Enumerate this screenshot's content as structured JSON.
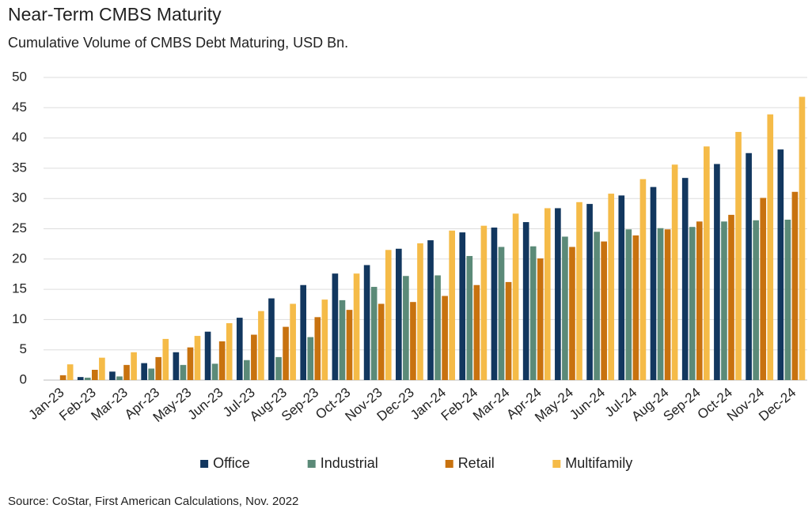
{
  "chart_data": {
    "type": "bar",
    "title": "Near-Term CMBS Maturity",
    "subtitle": "Cumulative Volume of CMBS Debt Maturing, USD Bn.",
    "source": "Source: CoStar, First American Calculations, Nov. 2022",
    "categories": [
      "Jan-23",
      "Feb-23",
      "Mar-23",
      "Apr-23",
      "May-23",
      "Jun-23",
      "Jul-23",
      "Aug-23",
      "Sep-23",
      "Oct-23",
      "Nov-23",
      "Dec-23",
      "Jan-24",
      "Feb-24",
      "Mar-24",
      "Apr-24",
      "May-24",
      "Jun-24",
      "Jul-24",
      "Aug-24",
      "Sep-24",
      "Oct-24",
      "Nov-24",
      "Dec-24"
    ],
    "series": [
      {
        "name": "Office",
        "color": "#12375f",
        "values": [
          0,
          0.5,
          1.4,
          2.8,
          4.6,
          8.0,
          10.3,
          13.5,
          15.7,
          17.6,
          19.0,
          21.7,
          23.1,
          24.4,
          25.2,
          26.1,
          28.4,
          29.1,
          30.5,
          31.9,
          33.4,
          35.7,
          37.5,
          38.1
        ]
      },
      {
        "name": "Industrial",
        "color": "#5b8a78",
        "values": [
          0,
          0.4,
          0.6,
          1.9,
          2.5,
          2.7,
          3.3,
          3.8,
          7.1,
          13.2,
          15.4,
          17.2,
          17.3,
          20.5,
          22.0,
          22.1,
          23.7,
          24.5,
          24.9,
          25.1,
          25.3,
          26.2,
          26.4,
          26.5
        ]
      },
      {
        "name": "Retail",
        "color": "#c8720f",
        "values": [
          0.8,
          1.7,
          2.5,
          3.8,
          5.4,
          6.4,
          7.5,
          8.8,
          10.4,
          11.6,
          12.6,
          12.9,
          13.9,
          15.7,
          16.2,
          20.1,
          22.0,
          22.9,
          23.9,
          24.9,
          26.2,
          27.3,
          30.1,
          31.1
        ]
      },
      {
        "name": "Multifamily",
        "color": "#f5bb48",
        "values": [
          2.6,
          3.7,
          4.6,
          6.8,
          7.3,
          9.4,
          11.4,
          12.6,
          13.3,
          17.6,
          21.5,
          22.6,
          24.7,
          25.5,
          27.5,
          28.4,
          29.4,
          30.8,
          33.2,
          35.6,
          38.6,
          41.0,
          43.9,
          46.8
        ]
      }
    ],
    "ylim": [
      0,
      50
    ],
    "yticks": [
      0,
      5,
      10,
      15,
      20,
      25,
      30,
      35,
      40,
      45,
      50
    ],
    "grid": true,
    "legend": "bottom"
  }
}
